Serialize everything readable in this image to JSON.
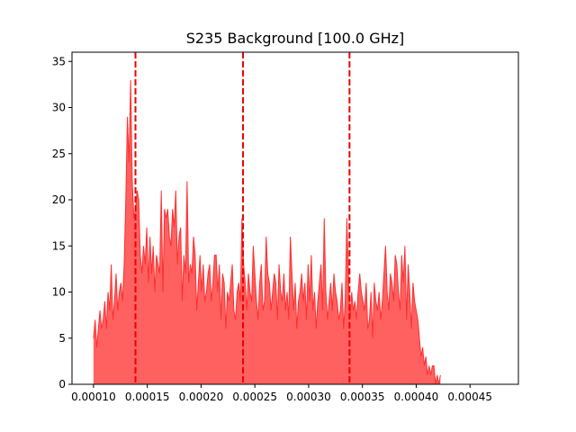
{
  "colors": {
    "fill": "#ff6060",
    "edge": "#ff3030",
    "vline": "#ee0000",
    "axis": "#000000"
  },
  "chart_data": {
    "type": "area",
    "title": "S235 Background [100.0 GHz]",
    "xlabel": "",
    "ylabel": "",
    "xlim": [
      8e-05,
      0.000495
    ],
    "ylim": [
      0,
      36
    ],
    "grid": false,
    "legend": "none",
    "xticks": [
      0.0001,
      0.00015,
      0.0002,
      0.00025,
      0.0003,
      0.00035,
      0.0004,
      0.00045
    ],
    "xtick_labels": [
      "0.00010",
      "0.00015",
      "0.00020",
      "0.00025",
      "0.00030",
      "0.00035",
      "0.00040",
      "0.00045"
    ],
    "yticks": [
      0,
      5,
      10,
      15,
      20,
      25,
      30,
      35
    ],
    "ytick_labels": [
      "0",
      "5",
      "10",
      "15",
      "20",
      "25",
      "30",
      "35"
    ],
    "vlines": [
      0.000139,
      0.000239,
      0.000338
    ],
    "series": [
      {
        "x0": 0.0001,
        "dx": 1.5e-06,
        "values": [
          5,
          7,
          4,
          6,
          8,
          6,
          7,
          9,
          6,
          10,
          8,
          13,
          7,
          9,
          12,
          8,
          10,
          11,
          9,
          13,
          20,
          29,
          24,
          33,
          22,
          18,
          19,
          21,
          20,
          14,
          12,
          15,
          13,
          17,
          11,
          16,
          12,
          15,
          10,
          14,
          13,
          12,
          21,
          10,
          19,
          18,
          19,
          16,
          15,
          19,
          17,
          21,
          13,
          16,
          17,
          9,
          14,
          12,
          22,
          11,
          13,
          12,
          16,
          14,
          8,
          11,
          14,
          10,
          13,
          9,
          10,
          12,
          13,
          9,
          11,
          14,
          14,
          10,
          13,
          7,
          12,
          11,
          6,
          10,
          9,
          11,
          13,
          8,
          7,
          10,
          11,
          9,
          18,
          13,
          11,
          8,
          12,
          10,
          9,
          15,
          12,
          9,
          7,
          11,
          13,
          8,
          9,
          16,
          12,
          11,
          8,
          10,
          12,
          11,
          7,
          13,
          10,
          9,
          12,
          8,
          10,
          7,
          16,
          12,
          8,
          11,
          6,
          9,
          10,
          12,
          9,
          11,
          7,
          13,
          9,
          14,
          8,
          10,
          6,
          9,
          11,
          13,
          8,
          18,
          10,
          7,
          9,
          11,
          8,
          12,
          10,
          9,
          7,
          8,
          11,
          6,
          9,
          18,
          12,
          7,
          10,
          8,
          9,
          7,
          10,
          12,
          10,
          9,
          8,
          11,
          6,
          7,
          10,
          5,
          11,
          9,
          8,
          10,
          7,
          9,
          12,
          15,
          10,
          8,
          12,
          11,
          9,
          14,
          13,
          10,
          8,
          14,
          11,
          15,
          7,
          13,
          10,
          6,
          11,
          9,
          8,
          7,
          5,
          3,
          4,
          2,
          3,
          1,
          2,
          1,
          2,
          2,
          0,
          1,
          0,
          1
        ]
      }
    ]
  }
}
